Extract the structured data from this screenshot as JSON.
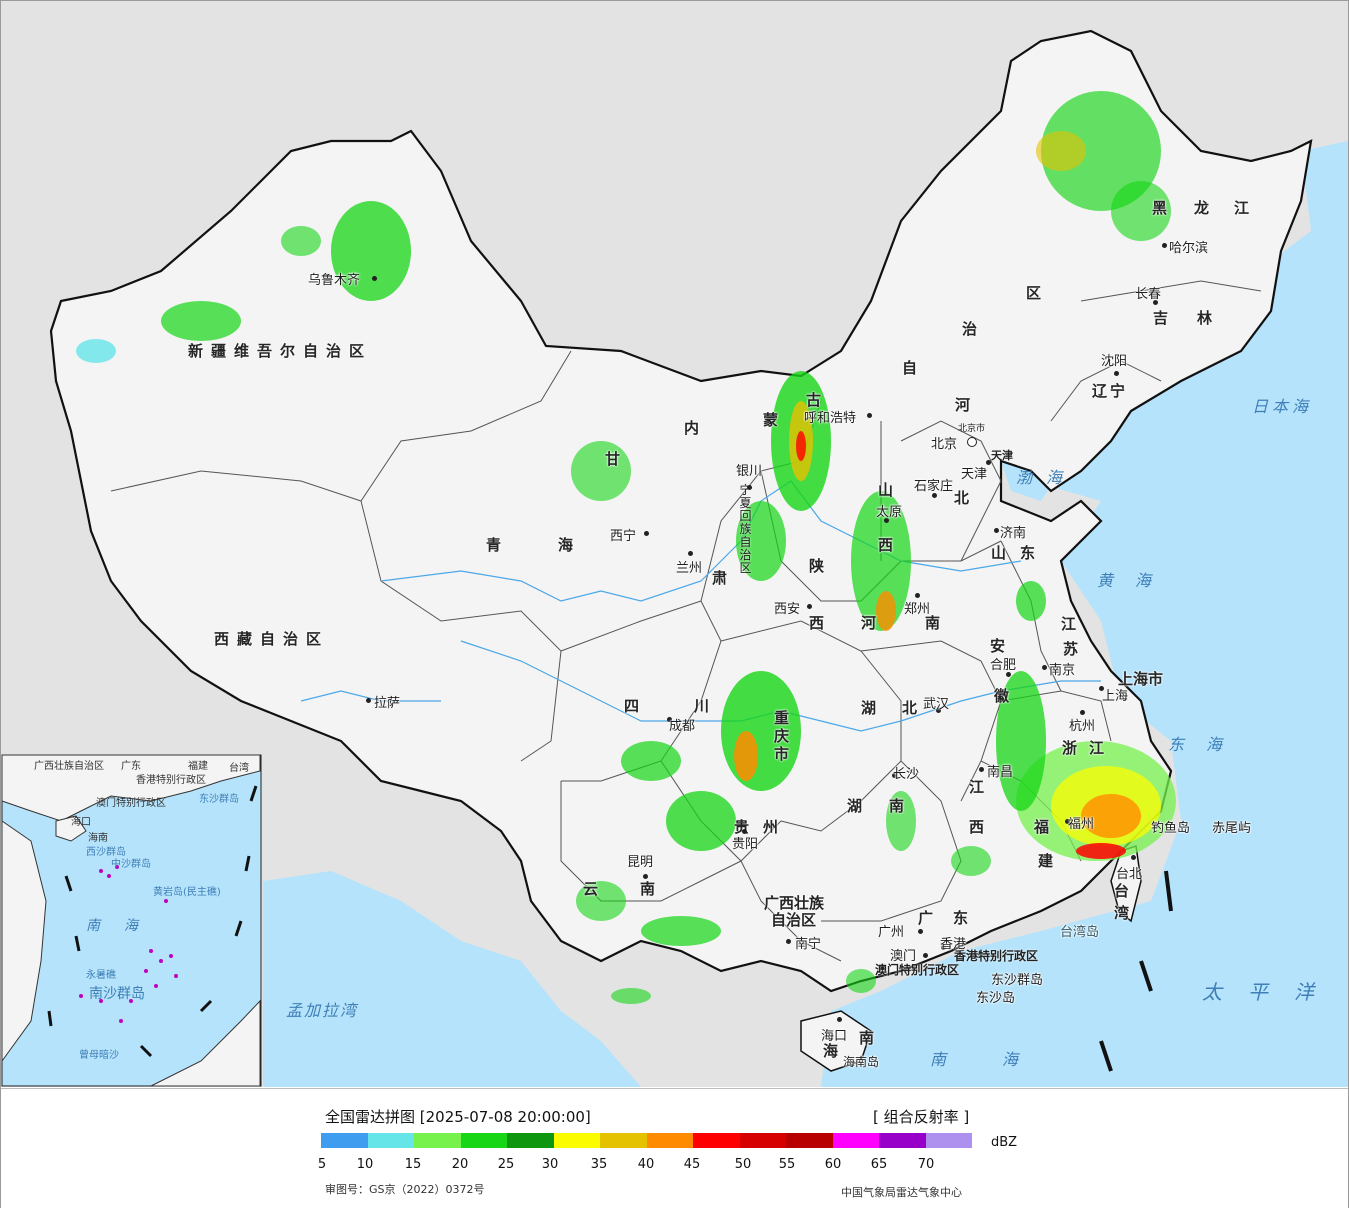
{
  "legend": {
    "title": "全国雷达拼图 [2025-07-08 20:00:00]",
    "product": "[ 组合反射率 ]",
    "unit": "dBZ",
    "ticks": [
      "5",
      "10",
      "15",
      "20",
      "25",
      "30",
      "35",
      "40",
      "45",
      "50",
      "55",
      "60",
      "65",
      "70"
    ],
    "colors": [
      "#3f9df0",
      "#66e5e8",
      "#77f24d",
      "#16d615",
      "#0e960e",
      "#fcfc00",
      "#e5c200",
      "#ff8c00",
      "#ff0000",
      "#d60000",
      "#b80000",
      "#ff00ff",
      "#9800ca",
      "#ae90ee"
    ],
    "approval": "审图号：GS京（2022）0372号",
    "organization": "中国气象局雷达气象中心"
  },
  "provinces": {
    "xinjiang": "新疆维吾尔自治区",
    "xizang": "西藏自治区",
    "qinghai_1": "青",
    "qinghai_2": "海",
    "gansu_1": "甘",
    "gansu_2": "肃",
    "neimenggu": [
      "内",
      "蒙",
      "古",
      "自",
      "治",
      "区"
    ],
    "heilongjiang": [
      "黑",
      "龙",
      "江"
    ],
    "jilin": [
      "吉",
      "林"
    ],
    "liaoning": [
      "辽",
      "宁"
    ],
    "hebei": [
      "河",
      "北"
    ],
    "shanxi": [
      "山",
      "西"
    ],
    "shandong": "山东",
    "henan": [
      "河",
      "南"
    ],
    "shaanxi": [
      "陕",
      "西"
    ],
    "ningxia": [
      "宁",
      "夏",
      "回",
      "族",
      "自",
      "治",
      "区"
    ],
    "sichuan": "四川",
    "chongqing": [
      "重",
      "庆",
      "市"
    ],
    "hubei": [
      "湖",
      "北"
    ],
    "hunan": [
      "湖",
      "南"
    ],
    "jiangsu": [
      "江",
      "苏"
    ],
    "anhui": [
      "安",
      "徽"
    ],
    "shanghai": "上海市",
    "zhejiang": [
      "浙",
      "江"
    ],
    "jiangxi": [
      "江",
      "西"
    ],
    "fujian": [
      "福",
      "建"
    ],
    "guizhou": [
      "贵",
      "州"
    ],
    "yunnan": [
      "云",
      "南"
    ],
    "guangxi_1": "广西壮族",
    "guangxi_2": "自治区",
    "guangdong": "广东",
    "hainan": [
      "海",
      "南"
    ],
    "taiwan": [
      "台",
      "湾"
    ],
    "hk": "香港特别行政区",
    "macau": "澳门特别行政区",
    "tianjin": "天津",
    "beijing": "北京市"
  },
  "cities": {
    "urumqi": "乌鲁木齐",
    "lhasa": "拉萨",
    "xining": "西宁",
    "lanzhou": "兰州",
    "yinchuan": "银川",
    "hohhot": "呼和浩特",
    "beijing": "北京",
    "tianjin": "天津",
    "shijiazhuang": "石家庄",
    "taiyuan": "太原",
    "jinan": "济南",
    "xian": "西安",
    "zhengzhou": "郑州",
    "chengdu": "成都",
    "wuhan": "武汉",
    "hefei": "合肥",
    "nanjing": "南京",
    "shanghai": "上海",
    "hangzhou": "杭州",
    "nanchang": "南昌",
    "fuzhou": "福州",
    "changsha": "长沙",
    "guiyang": "贵阳",
    "kunming": "昆明",
    "nanning": "南宁",
    "guangzhou": "广州",
    "macau": "澳门",
    "hongkong": "香港",
    "haikou": "海口",
    "taipei": "台北",
    "harbin": "哈尔滨",
    "changchun": "长春",
    "shenyang": "沈阳"
  },
  "islands": {
    "diaoyu": "钓鱼岛",
    "chiwei": "赤尾屿",
    "taiwan_island": "台湾岛",
    "dongsha_islands": "东沙群岛",
    "dongsha_island": "东沙岛",
    "hainan_island": "海南岛"
  },
  "seas": {
    "japan_sea": "日本海",
    "bohai": "渤海",
    "yellow_sea": "黄海",
    "east_sea": "东海",
    "pacific": "太平洋",
    "south_sea": "南海",
    "bengal": "孟加拉湾"
  },
  "inset": {
    "guangxi": "广西壮族自治区",
    "guangdong": "广东",
    "fujian": "福建",
    "taiwan": "台湾",
    "hk": "香港特别行政区",
    "macau": "澳门特别行政区",
    "haikou": "海口",
    "hainan": "海南",
    "xisha": "西沙群岛",
    "zhongsha": "中沙群岛",
    "huangyan": "黄岩岛(民主礁)",
    "nansha": "南沙群岛",
    "yongshu": "永暑礁",
    "zengmu": "曾母暗沙",
    "south_sea": "南海",
    "dongsha": "东沙群岛"
  }
}
